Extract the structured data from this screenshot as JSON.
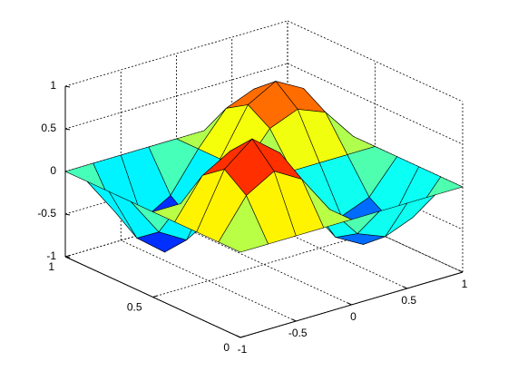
{
  "chart_data": {
    "type": "surface",
    "colormap": "jet",
    "grid": true,
    "x": [
      -1,
      -0.75,
      -0.5,
      -0.25,
      0,
      0.25,
      0.5,
      0.75,
      1
    ],
    "y": [
      0,
      0.125,
      0.25,
      0.375,
      0.5,
      0.625,
      0.75,
      0.875,
      1
    ],
    "z": [
      [
        0,
        0,
        0,
        0,
        0,
        0,
        0,
        0,
        0
      ],
      [
        0,
        0.45,
        0.64,
        0.45,
        0,
        -0.38,
        -0.51,
        -0.38,
        0
      ],
      [
        0,
        0.64,
        0.9,
        0.64,
        0,
        -0.54,
        -0.72,
        -0.54,
        0
      ],
      [
        0,
        0.45,
        0.64,
        0.45,
        0,
        -0.38,
        -0.51,
        -0.38,
        0
      ],
      [
        0,
        0,
        0,
        0,
        0,
        0,
        0,
        0,
        0
      ],
      [
        0,
        -0.45,
        -0.64,
        -0.45,
        0,
        0.38,
        0.51,
        0.38,
        0
      ],
      [
        0,
        -0.64,
        -0.9,
        -0.64,
        0,
        0.54,
        0.72,
        0.54,
        0
      ],
      [
        0,
        -0.45,
        -0.64,
        -0.45,
        0,
        0.38,
        0.51,
        0.38,
        0
      ],
      [
        0,
        0,
        0,
        0,
        0,
        0,
        0,
        0,
        0
      ]
    ],
    "xlim": [
      -1,
      1
    ],
    "ylim": [
      0,
      1
    ],
    "zlim": [
      -1,
      1
    ],
    "xticks": [
      -1,
      -0.5,
      0,
      0.5,
      1
    ],
    "yticks": [
      0,
      0.5,
      1
    ],
    "zticks": [
      -1,
      -0.5,
      0,
      0.5,
      1
    ]
  }
}
